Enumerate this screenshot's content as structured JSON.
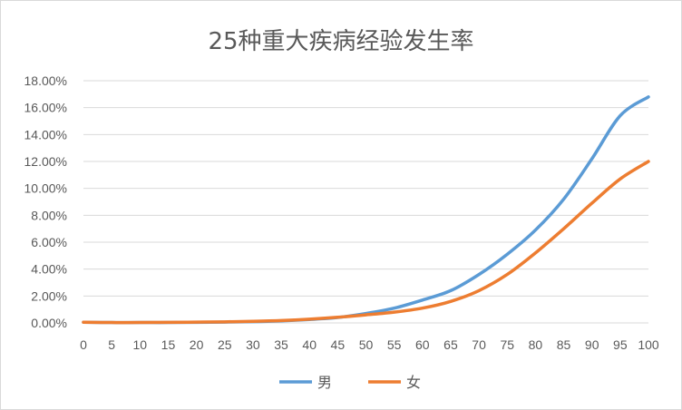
{
  "chart_data": {
    "type": "line",
    "title": "25种重大疾病经验发生率",
    "xlabel": "",
    "ylabel": "",
    "xlim": [
      0,
      100
    ],
    "ylim": [
      0,
      0.18
    ],
    "x_ticks": [
      0,
      5,
      10,
      15,
      20,
      25,
      30,
      35,
      40,
      45,
      50,
      55,
      60,
      65,
      70,
      75,
      80,
      85,
      90,
      95,
      100
    ],
    "y_ticks": [
      0,
      0.02,
      0.04,
      0.06,
      0.08,
      0.1,
      0.12,
      0.14,
      0.16,
      0.18
    ],
    "y_tick_labels": [
      "0.00%",
      "2.00%",
      "4.00%",
      "6.00%",
      "8.00%",
      "10.00%",
      "12.00%",
      "14.00%",
      "16.00%",
      "18.00%"
    ],
    "grid": "horizontal",
    "legend_position": "bottom",
    "x": [
      0,
      5,
      10,
      15,
      20,
      25,
      30,
      35,
      40,
      45,
      50,
      55,
      60,
      65,
      70,
      75,
      80,
      85,
      90,
      95,
      100
    ],
    "series": [
      {
        "name": "男",
        "color": "#5B9BD5",
        "values": [
          0.0005,
          0.0003,
          0.0003,
          0.0003,
          0.0004,
          0.0006,
          0.0009,
          0.0015,
          0.0025,
          0.004,
          0.007,
          0.011,
          0.017,
          0.024,
          0.036,
          0.051,
          0.069,
          0.092,
          0.122,
          0.154,
          0.168
        ]
      },
      {
        "name": "女",
        "color": "#ED7D31",
        "values": [
          0.0005,
          0.0003,
          0.0003,
          0.0004,
          0.0006,
          0.0008,
          0.0012,
          0.0018,
          0.0028,
          0.0042,
          0.006,
          0.008,
          0.011,
          0.016,
          0.024,
          0.036,
          0.052,
          0.07,
          0.089,
          0.107,
          0.12
        ]
      }
    ]
  }
}
